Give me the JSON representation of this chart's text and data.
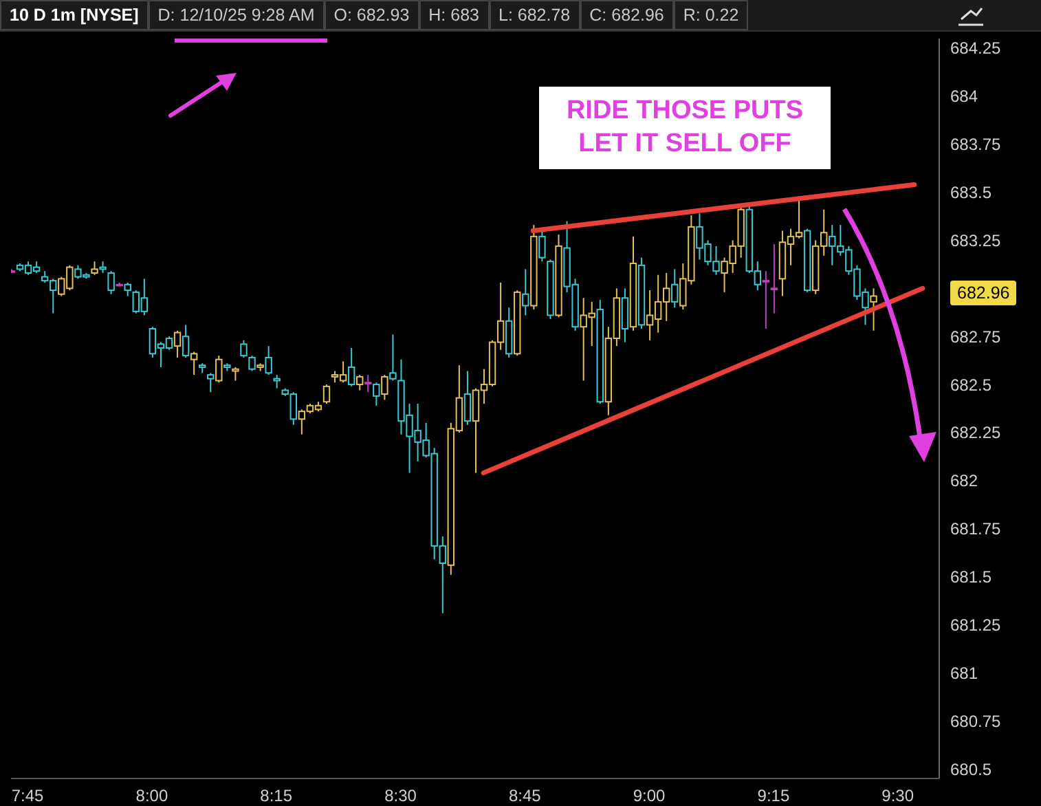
{
  "chart_data": {
    "type": "candlestick",
    "title": "10 D 1m [NYSE]",
    "annotations": [
      "D: 12/10/25 9:28 AM",
      "O: 682.93",
      "H: 683",
      "L: 682.78",
      "C: 682.96",
      "R: 0.22",
      "RIDE THOSE PUTS\nLET IT SELL OFF",
      "682.96"
    ],
    "x": [
      "--12-10T07:43",
      "--12-10T07:44",
      "--12-10T07:45",
      "--12-10T07:46",
      "--12-10T07:47",
      "--12-10T07:48",
      "--12-10T07:49",
      "--12-10T07:50",
      "--12-10T07:51",
      "--12-10T07:52",
      "--12-10T07:53",
      "--12-10T07:54",
      "--12-10T07:55",
      "--12-10T07:56",
      "--12-10T07:57",
      "--12-10T07:58",
      "--12-10T07:59",
      "--12-10T08:00",
      "--12-10T08:01",
      "--12-10T08:02",
      "--12-10T08:03",
      "--12-10T08:04",
      "--12-10T08:05",
      "--12-10T08:06",
      "--12-10T08:07",
      "--12-10T08:08",
      "--12-10T08:09",
      "--12-10T08:10",
      "--12-10T08:11",
      "--12-10T08:12",
      "--12-10T08:13",
      "--12-10T08:14",
      "--12-10T08:15",
      "--12-10T08:16",
      "--12-10T08:17",
      "--12-10T08:18",
      "--12-10T08:19",
      "--12-10T08:20",
      "--12-10T08:21",
      "--12-10T08:22",
      "--12-10T08:23",
      "--12-10T08:24",
      "--12-10T08:25",
      "--12-10T08:26",
      "--12-10T08:27",
      "--12-10T08:28",
      "--12-10T08:29",
      "--12-10T08:30",
      "--12-10T08:31",
      "--12-10T08:32",
      "--12-10T08:33",
      "--12-10T08:34",
      "--12-10T08:35",
      "--12-10T08:36",
      "--12-10T08:37",
      "--12-10T08:38",
      "--12-10T08:39",
      "--12-10T08:40",
      "--12-10T08:41",
      "--12-10T08:42",
      "--12-10T08:43",
      "--12-10T08:44",
      "--12-10T08:45",
      "--12-10T08:46",
      "--12-10T08:47",
      "--12-10T08:48",
      "--12-10T08:49",
      "--12-10T08:50",
      "--12-10T08:51",
      "--12-10T08:52",
      "--12-10T08:53",
      "--12-10T08:54",
      "--12-10T08:55",
      "--12-10T08:56",
      "--12-10T08:57",
      "--12-10T08:58",
      "--12-10T08:59",
      "--12-10T09:00",
      "--12-10T09:01",
      "--12-10T09:02",
      "--12-10T09:03",
      "--12-10T09:04",
      "--12-10T09:05",
      "--12-10T09:06",
      "--12-10T09:07",
      "--12-10T09:08",
      "--12-10T09:09",
      "--12-10T09:10",
      "--12-10T09:11",
      "--12-10T09:12",
      "--12-10T09:13",
      "--12-10T09:14",
      "--12-10T09:15",
      "--12-10T09:16",
      "--12-10T09:17",
      "--12-10T09:18",
      "--12-10T09:19",
      "--12-10T09:20",
      "--12-10T09:21",
      "--12-10T09:22",
      "--12-10T09:23",
      "--12-10T09:24",
      "--12-10T09:25",
      "--12-10T09:26",
      "--12-10T09:27"
    ],
    "ohlc": [
      [
        683.09,
        683.1,
        683.08,
        683.09
      ],
      [
        683.12,
        683.13,
        683.09,
        683.1
      ],
      [
        683.12,
        683.14,
        683.07,
        683.08
      ],
      [
        683.11,
        683.14,
        683.08,
        683.09
      ],
      [
        683.06,
        683.09,
        683.03,
        683.04
      ],
      [
        683.04,
        683.05,
        682.87,
        682.99
      ],
      [
        682.97,
        683.06,
        682.96,
        683.05
      ],
      [
        683.0,
        683.12,
        682.99,
        683.11
      ],
      [
        683.1,
        683.12,
        683.05,
        683.06
      ],
      [
        683.07,
        683.08,
        683.05,
        683.06
      ],
      [
        683.08,
        683.14,
        683.07,
        683.1
      ],
      [
        683.11,
        683.14,
        683.08,
        683.1
      ],
      [
        683.08,
        683.09,
        682.97,
        682.99
      ],
      [
        683.02,
        683.03,
        683.01,
        683.02
      ],
      [
        683.02,
        683.03,
        682.96,
        682.99
      ],
      [
        682.98,
        682.99,
        682.87,
        682.88
      ],
      [
        682.95,
        683.05,
        682.86,
        682.88
      ],
      [
        682.79,
        682.8,
        682.64,
        682.66
      ],
      [
        682.71,
        682.72,
        682.59,
        682.69
      ],
      [
        682.74,
        682.75,
        682.68,
        682.69
      ],
      [
        682.7,
        682.78,
        682.64,
        682.77
      ],
      [
        682.75,
        682.81,
        682.64,
        682.65
      ],
      [
        682.63,
        682.67,
        682.55,
        682.66
      ],
      [
        682.6,
        682.61,
        682.56,
        682.59
      ],
      [
        682.55,
        682.56,
        682.46,
        682.53
      ],
      [
        682.52,
        682.65,
        682.51,
        682.63
      ],
      [
        682.6,
        682.61,
        682.57,
        682.59
      ],
      [
        682.57,
        682.59,
        682.52,
        682.58
      ],
      [
        682.71,
        682.73,
        682.64,
        682.65
      ],
      [
        682.64,
        682.65,
        682.57,
        682.58
      ],
      [
        682.59,
        682.61,
        682.57,
        682.6
      ],
      [
        682.64,
        682.7,
        682.55,
        682.56
      ],
      [
        682.53,
        682.55,
        682.48,
        682.52
      ],
      [
        682.47,
        682.48,
        682.44,
        682.45
      ],
      [
        682.45,
        682.46,
        682.29,
        682.32
      ],
      [
        682.32,
        682.37,
        682.24,
        682.36
      ],
      [
        682.36,
        682.4,
        682.35,
        682.39
      ],
      [
        682.37,
        682.41,
        682.36,
        682.39
      ],
      [
        682.41,
        682.5,
        682.4,
        682.49
      ],
      [
        682.54,
        682.57,
        682.51,
        682.55
      ],
      [
        682.52,
        682.62,
        682.51,
        682.55
      ],
      [
        682.59,
        682.69,
        682.49,
        682.5
      ],
      [
        682.5,
        682.55,
        682.47,
        682.54
      ],
      [
        682.51,
        682.55,
        682.46,
        682.51
      ],
      [
        682.5,
        682.51,
        682.39,
        682.44
      ],
      [
        682.45,
        682.55,
        682.42,
        682.54
      ],
      [
        682.56,
        682.76,
        682.52,
        682.53
      ],
      [
        682.52,
        682.63,
        682.24,
        682.31
      ],
      [
        682.34,
        682.4,
        682.04,
        682.23
      ],
      [
        682.26,
        682.4,
        682.1,
        682.2
      ],
      [
        682.21,
        682.3,
        682.12,
        682.13
      ],
      [
        682.14,
        682.17,
        681.59,
        681.66
      ],
      [
        681.66,
        681.71,
        681.31,
        681.57
      ],
      [
        681.56,
        682.3,
        681.51,
        682.27
      ],
      [
        682.26,
        682.6,
        682.25,
        682.43
      ],
      [
        682.45,
        682.57,
        682.29,
        682.31
      ],
      [
        682.31,
        682.48,
        682.04,
        682.47
      ],
      [
        682.47,
        682.58,
        682.4,
        682.5
      ],
      [
        682.5,
        682.73,
        682.49,
        682.72
      ],
      [
        682.72,
        683.03,
        682.68,
        682.83
      ],
      [
        682.83,
        682.9,
        682.64,
        682.66
      ],
      [
        682.66,
        682.99,
        682.65,
        682.98
      ],
      [
        682.97,
        683.1,
        682.86,
        682.91
      ],
      [
        682.91,
        683.33,
        682.89,
        683.27
      ],
      [
        683.27,
        683.3,
        683.14,
        683.16
      ],
      [
        683.14,
        683.15,
        682.84,
        682.86
      ],
      [
        682.86,
        683.28,
        682.85,
        683.22
      ],
      [
        683.21,
        683.35,
        682.98,
        683.01
      ],
      [
        683.02,
        683.05,
        682.78,
        682.8
      ],
      [
        682.8,
        682.95,
        682.52,
        682.86
      ],
      [
        682.85,
        682.93,
        682.7,
        682.87
      ],
      [
        682.89,
        682.94,
        682.4,
        682.41
      ],
      [
        682.41,
        682.8,
        682.34,
        682.74
      ],
      [
        682.74,
        683.0,
        682.7,
        682.95
      ],
      [
        682.95,
        683.0,
        682.72,
        682.79
      ],
      [
        682.8,
        683.27,
        682.78,
        683.13
      ],
      [
        683.12,
        683.16,
        682.79,
        682.81
      ],
      [
        682.81,
        682.99,
        682.73,
        682.86
      ],
      [
        682.84,
        683.07,
        682.77,
        682.93
      ],
      [
        682.93,
        683.08,
        682.83,
        683.0
      ],
      [
        683.02,
        683.1,
        682.9,
        682.93
      ],
      [
        682.91,
        683.13,
        682.89,
        683.05
      ],
      [
        683.04,
        683.38,
        683.02,
        683.32
      ],
      [
        683.32,
        683.39,
        683.15,
        683.21
      ],
      [
        683.23,
        683.25,
        683.12,
        683.14
      ],
      [
        683.14,
        683.22,
        683.07,
        683.09
      ],
      [
        683.08,
        683.16,
        682.98,
        683.14
      ],
      [
        683.13,
        683.25,
        683.08,
        683.22
      ],
      [
        683.22,
        683.43,
        683.16,
        683.41
      ],
      [
        683.41,
        683.43,
        683.08,
        683.09
      ],
      [
        683.09,
        683.14,
        682.99,
        683.02
      ],
      [
        683.04,
        683.09,
        682.79,
        683.04
      ],
      [
        683.0,
        683.23,
        682.87,
        683.0
      ],
      [
        683.05,
        683.3,
        682.96,
        683.24
      ],
      [
        683.23,
        683.31,
        683.12,
        683.27
      ],
      [
        683.27,
        683.47,
        683.26,
        683.29
      ],
      [
        683.3,
        683.31,
        682.98,
        682.99
      ],
      [
        682.99,
        683.25,
        682.97,
        683.22
      ],
      [
        683.22,
        683.41,
        683.17,
        683.29
      ],
      [
        683.27,
        683.33,
        683.12,
        683.22
      ],
      [
        683.22,
        683.33,
        683.17,
        683.19
      ],
      [
        683.2,
        683.22,
        683.07,
        683.09
      ],
      [
        683.1,
        683.12,
        682.94,
        682.96
      ],
      [
        682.98,
        683.0,
        682.81,
        682.9
      ],
      [
        682.93,
        683.0,
        682.78,
        682.96
      ]
    ],
    "colors": [
      "#c040c0",
      "#3cc8d0",
      "#3cc8d0",
      "#3cc8d0",
      "#3cc8d0",
      "#3cc8d0",
      "#e2bf5a",
      "#e2bf5a",
      "#3cc8d0",
      "#3cc8d0",
      "#e2bf5a",
      "#3cc8d0",
      "#3cc8d0",
      "#c040c0",
      "#3cc8d0",
      "#3cc8d0",
      "#3cc8d0",
      "#3cc8d0",
      "#3cc8d0",
      "#3cc8d0",
      "#e2bf5a",
      "#3cc8d0",
      "#e2bf5a",
      "#3cc8d0",
      "#3cc8d0",
      "#e2bf5a",
      "#3cc8d0",
      "#e2bf5a",
      "#3cc8d0",
      "#3cc8d0",
      "#e2bf5a",
      "#3cc8d0",
      "#3cc8d0",
      "#3cc8d0",
      "#3cc8d0",
      "#e2bf5a",
      "#e2bf5a",
      "#e2bf5a",
      "#e2bf5a",
      "#e2bf5a",
      "#e2bf5a",
      "#3cc8d0",
      "#e2bf5a",
      "#c040c0",
      "#3cc8d0",
      "#e2bf5a",
      "#3cc8d0",
      "#3cc8d0",
      "#3cc8d0",
      "#3cc8d0",
      "#3cc8d0",
      "#3cc8d0",
      "#3cc8d0",
      "#e2bf5a",
      "#e2bf5a",
      "#3cc8d0",
      "#e2bf5a",
      "#e2bf5a",
      "#e2bf5a",
      "#e2bf5a",
      "#3cc8d0",
      "#e2bf5a",
      "#3cc8d0",
      "#e2bf5a",
      "#3cc8d0",
      "#3cc8d0",
      "#e2bf5a",
      "#3cc8d0",
      "#3cc8d0",
      "#e2bf5a",
      "#e2bf5a",
      "#3cc8d0",
      "#e2bf5a",
      "#e2bf5a",
      "#3cc8d0",
      "#e2bf5a",
      "#3cc8d0",
      "#e2bf5a",
      "#e2bf5a",
      "#e2bf5a",
      "#3cc8d0",
      "#e2bf5a",
      "#e2bf5a",
      "#3cc8d0",
      "#3cc8d0",
      "#3cc8d0",
      "#e2bf5a",
      "#e2bf5a",
      "#e2bf5a",
      "#3cc8d0",
      "#3cc8d0",
      "#c040c0",
      "#c040c0",
      "#e2bf5a",
      "#e2bf5a",
      "#e2bf5a",
      "#3cc8d0",
      "#e2bf5a",
      "#e2bf5a",
      "#3cc8d0",
      "#3cc8d0",
      "#3cc8d0",
      "#3cc8d0",
      "#3cc8d0",
      "#e2bf5a"
    ],
    "series": [
      {
        "type": "line",
        "color": "#e8413a",
        "x": [
          "--12-10T08:46",
          "--12-10T09:32"
        ],
        "values": [
          683.3,
          683.54
        ]
      },
      {
        "type": "line",
        "color": "#e8413a",
        "x": [
          "--12-10T08:40",
          "--12-10T09:33"
        ],
        "values": [
          682.04,
          683.0
        ]
      }
    ],
    "xlim": [
      "--12-10T07:43",
      "--12-10T09:35"
    ],
    "xticks": [
      {
        "value": "--12-10T07:45",
        "label": "7:45"
      },
      {
        "value": "--12-10T08:00",
        "label": "8:00"
      },
      {
        "value": "--12-10T08:15",
        "label": "8:15"
      },
      {
        "value": "--12-10T08:30",
        "label": "8:30"
      },
      {
        "value": "--12-10T08:45",
        "label": "8:45"
      },
      {
        "value": "--12-10T09:00",
        "label": "9:00"
      },
      {
        "value": "--12-10T09:15",
        "label": "9:15"
      },
      {
        "value": "--12-10T09:30",
        "label": "9:30"
      }
    ],
    "ylim": [
      680.45,
      684.3
    ],
    "yticks": [
      680.5,
      680.75,
      681,
      681.25,
      681.5,
      681.75,
      682,
      682.25,
      682.5,
      682.75,
      683.25,
      683.5,
      683.75,
      684,
      684.25
    ],
    "grid": false
  }
}
